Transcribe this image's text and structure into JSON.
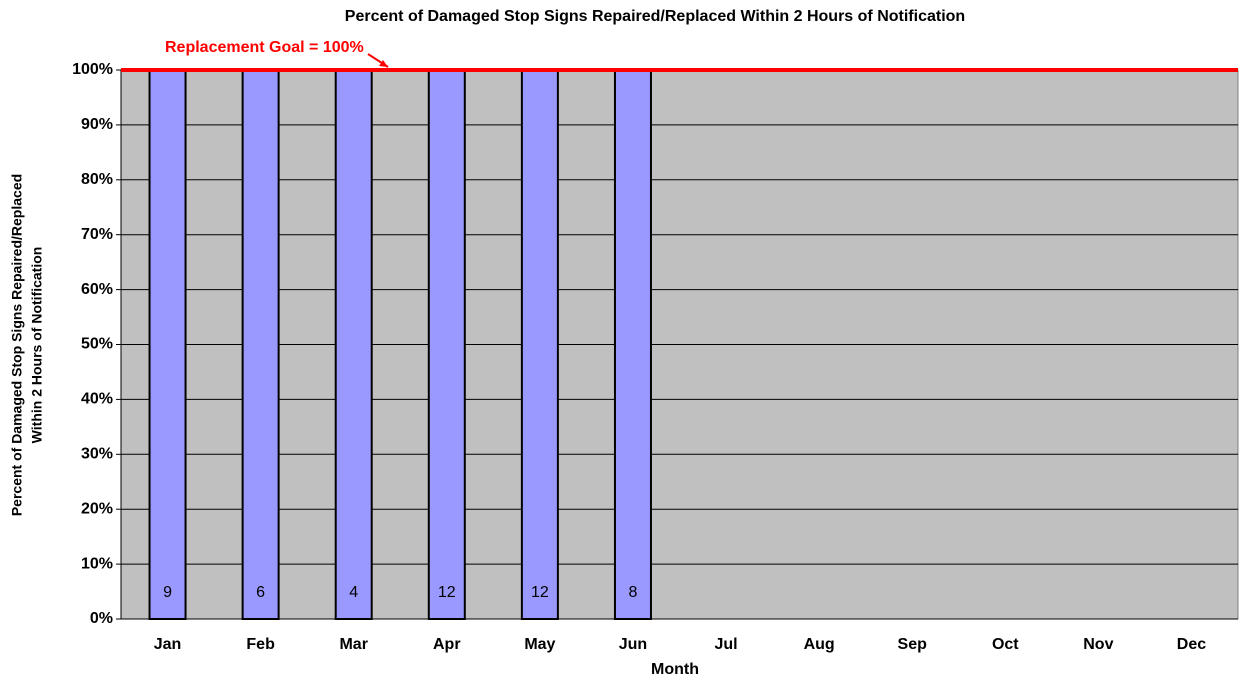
{
  "chart_data": {
    "type": "bar",
    "title": "Percent of Damaged Stop Signs Repaired/Replaced Within 2 Hours of Notification",
    "y_label": [
      "Percent of  Damaged Stop Signs Repaired/Replaced",
      "Within 2 Hours of Notification"
    ],
    "x_label": "Month",
    "categories": [
      "Jan",
      "Feb",
      "Mar",
      "Apr",
      "May",
      "Jun",
      "Jul",
      "Aug",
      "Sep",
      "Oct",
      "Nov",
      "Dec"
    ],
    "values": [
      100,
      100,
      100,
      100,
      100,
      100,
      null,
      null,
      null,
      null,
      null,
      null
    ],
    "counts": [
      9,
      6,
      4,
      12,
      12,
      8,
      null,
      null,
      null,
      null,
      null,
      null
    ],
    "color": "#9999ff",
    "goal": 100,
    "goal_color": "#ff0000",
    "goal_annotation": "Replacement Goal = 100%",
    "ylim": [
      0,
      100
    ],
    "yticks": [
      {
        "value": 0,
        "label": "0%"
      },
      {
        "value": 10,
        "label": "10%"
      },
      {
        "value": 20,
        "label": "20%"
      },
      {
        "value": 30,
        "label": "30%"
      },
      {
        "value": 40,
        "label": "40%"
      },
      {
        "value": 50,
        "label": "50%"
      },
      {
        "value": 60,
        "label": "60%"
      },
      {
        "value": 70,
        "label": "70%"
      },
      {
        "value": 80,
        "label": "80%"
      },
      {
        "value": 90,
        "label": "90%"
      },
      {
        "value": 100,
        "label": "100%"
      }
    ],
    "grid": true
  }
}
